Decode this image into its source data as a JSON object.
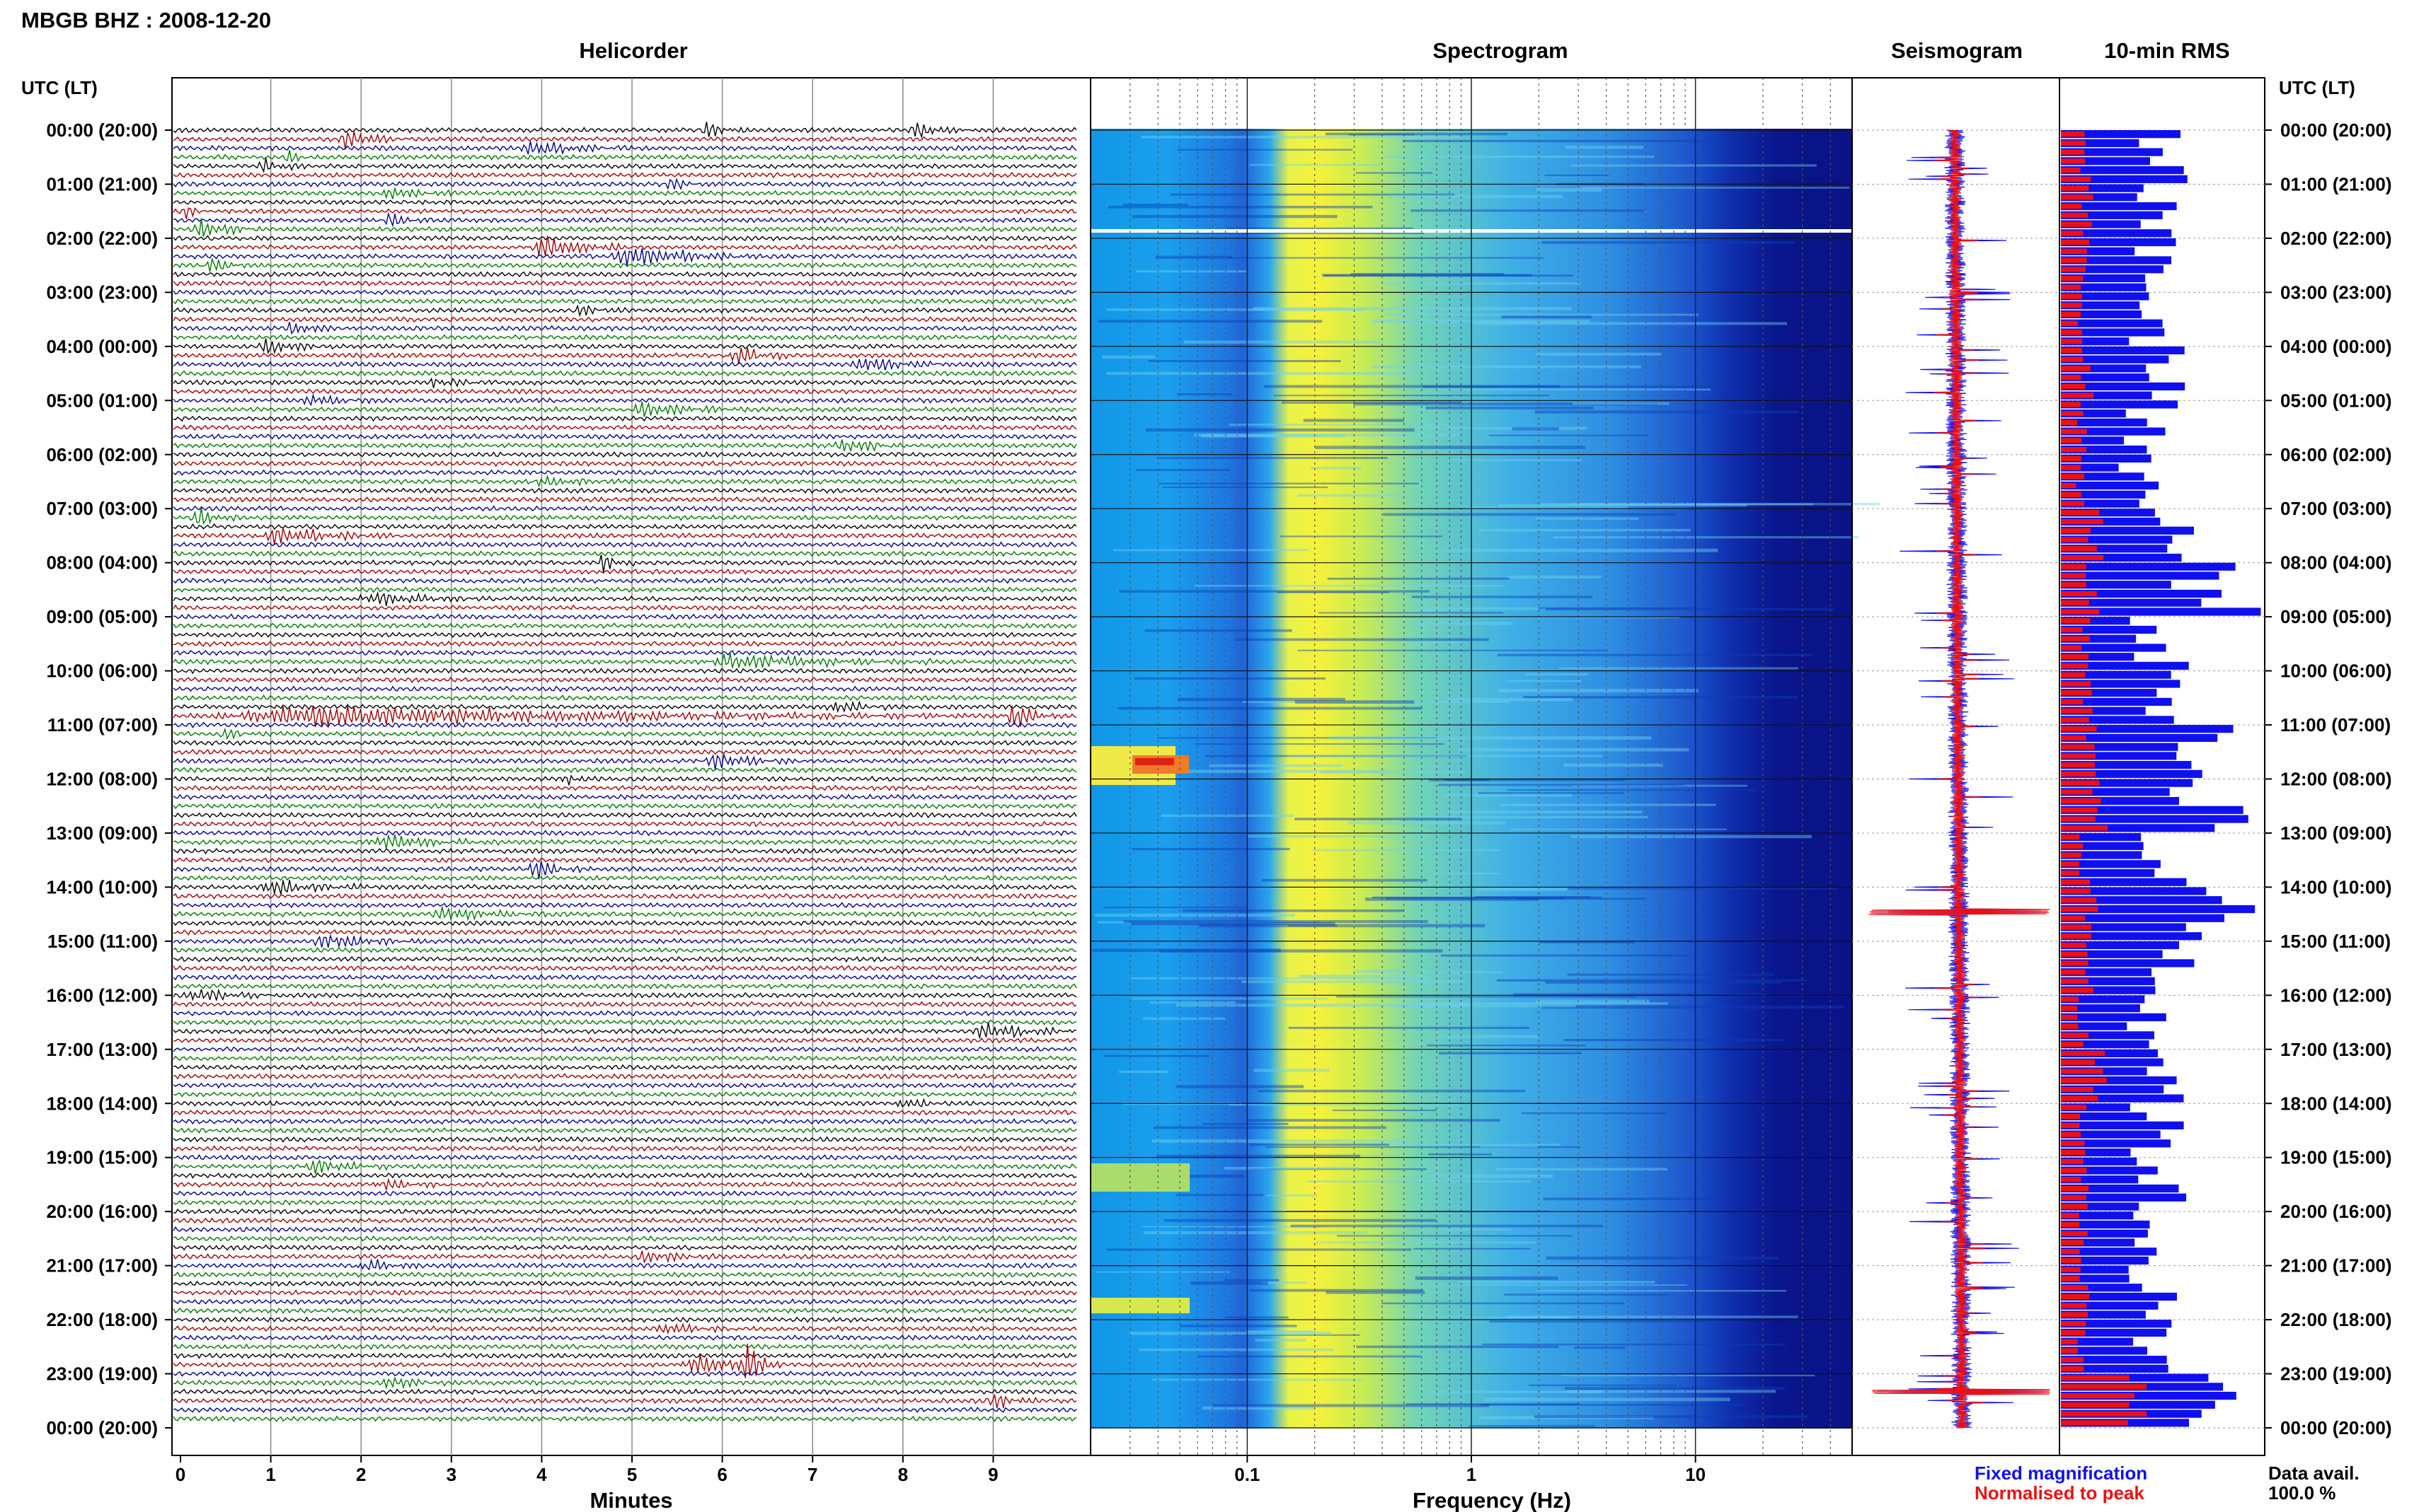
{
  "header": {
    "station": "MBGB BHZ : 2008-12-20",
    "left_axis_title": "UTC (LT)",
    "right_axis_title": "UTC (LT)"
  },
  "panels": {
    "helicorder": "Helicorder",
    "spectrogram": "Spectrogram",
    "seismogram": "Seismogram",
    "rms": "10-min RMS"
  },
  "axes": {
    "minutes_label": "Minutes",
    "frequency_label": "Frequency (Hz)",
    "minute_ticks": [
      "0",
      "1",
      "2",
      "3",
      "4",
      "5",
      "6",
      "7",
      "8",
      "9"
    ],
    "frequency_ticks": [
      "0.1",
      "1",
      "10"
    ]
  },
  "legend": {
    "fixed": "Fixed magnification",
    "normalised": "Normalised to peak",
    "fixed_color": "#1010ee",
    "normalised_color": "#ee1010"
  },
  "data_availability": {
    "label": "Data avail.",
    "value": "100.0 %"
  },
  "colors": {
    "trace_cycle": [
      "#000000",
      "#a00000",
      "#00008b",
      "#007a00"
    ],
    "rms_fixed": "#1010ee",
    "rms_normalised": "#ee1010"
  },
  "chart_data": {
    "type": "heatmap",
    "title": "MBGB BHZ : 2008-12-20",
    "time_labels": [
      "00:00 (20:00)",
      "01:00 (21:00)",
      "02:00 (22:00)",
      "03:00 (23:00)",
      "04:00 (00:00)",
      "05:00 (01:00)",
      "06:00 (02:00)",
      "07:00 (03:00)",
      "08:00 (04:00)",
      "09:00 (05:00)",
      "10:00 (06:00)",
      "11:00 (07:00)",
      "12:00 (08:00)",
      "13:00 (09:00)",
      "14:00 (10:00)",
      "15:00 (11:00)",
      "16:00 (12:00)",
      "17:00 (13:00)",
      "18:00 (14:00)",
      "19:00 (15:00)",
      "20:00 (16:00)",
      "21:00 (17:00)",
      "22:00 (18:00)",
      "23:00 (19:00)",
      "00:00 (20:00)"
    ],
    "helicorder": {
      "xlabel": "Minutes",
      "xlim": [
        0,
        10
      ],
      "rows_per_hour": 6
    },
    "spectrogram": {
      "xlabel": "Frequency (Hz)",
      "xscale": "log",
      "xlim": [
        0.02,
        50
      ]
    },
    "rms": {
      "title": "10-min RMS",
      "fixed_hourly": [
        0.62,
        0.66,
        0.55,
        0.58,
        0.64,
        0.55,
        0.5,
        0.67,
        0.95,
        0.6,
        0.72,
        0.82,
        0.95,
        0.6,
        0.98,
        0.7,
        0.58,
        0.66,
        0.58,
        0.6,
        0.56,
        0.57,
        0.53,
        0.9
      ],
      "normalised_hourly": [
        0.3,
        0.32,
        0.28,
        0.27,
        0.33,
        0.26,
        0.25,
        0.43,
        0.38,
        0.29,
        0.31,
        0.36,
        0.46,
        0.29,
        0.37,
        0.33,
        0.27,
        0.45,
        0.28,
        0.3,
        0.27,
        0.3,
        0.28,
        1.0
      ]
    }
  }
}
